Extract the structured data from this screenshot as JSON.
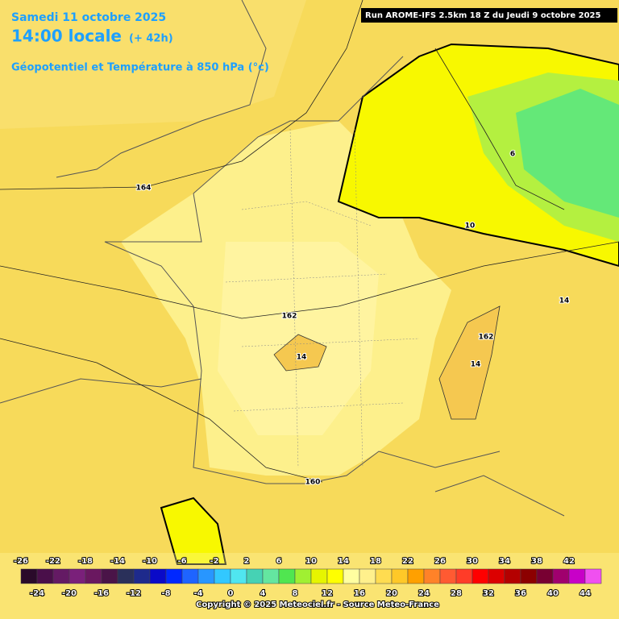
{
  "header": {
    "date": "Samedi 11 octobre 2025",
    "time": "14:00 locale",
    "lead": "(+ 42h)",
    "field": "Géopotentiel et Température à 850 hPa (°c)",
    "run": "Run AROME-IFS 2.5km 18 Z du Jeudi 9 octobre 2025"
  },
  "map_labels": [
    "164",
    "162",
    "160",
    "14",
    "14",
    "162",
    "14",
    "10",
    "6"
  ],
  "colorbar": [
    {
      "value": -26,
      "color": "#2a0a2a"
    },
    {
      "value": -24,
      "color": "#4a0f4a"
    },
    {
      "value": -22,
      "color": "#641a64"
    },
    {
      "value": -20,
      "color": "#7a207a"
    },
    {
      "value": -18,
      "color": "#6a1860"
    },
    {
      "value": -16,
      "color": "#4a1448"
    },
    {
      "value": -14,
      "color": "#2a305a"
    },
    {
      "value": -12,
      "color": "#1e2a8c"
    },
    {
      "value": -10,
      "color": "#0a0ac8"
    },
    {
      "value": -8,
      "color": "#0028ff"
    },
    {
      "value": -6,
      "color": "#1e64ff"
    },
    {
      "value": -4,
      "color": "#2896ff"
    },
    {
      "value": -2,
      "color": "#32c8ff"
    },
    {
      "value": 0,
      "color": "#50e6f0"
    },
    {
      "value": 2,
      "color": "#46d2b4"
    },
    {
      "value": 4,
      "color": "#64e6a0"
    },
    {
      "value": 6,
      "color": "#50e650"
    },
    {
      "value": 8,
      "color": "#a0f032"
    },
    {
      "value": 10,
      "color": "#e6f500"
    },
    {
      "value": 12,
      "color": "#ffff00"
    },
    {
      "value": 14,
      "color": "#ffffa0"
    },
    {
      "value": 16,
      "color": "#fff08c"
    },
    {
      "value": 18,
      "color": "#ffdc50"
    },
    {
      "value": 20,
      "color": "#ffc828"
    },
    {
      "value": 22,
      "color": "#ffa000"
    },
    {
      "value": 24,
      "color": "#ff8228"
    },
    {
      "value": 26,
      "color": "#ff5a32"
    },
    {
      "value": 28,
      "color": "#ff3c28"
    },
    {
      "value": 30,
      "color": "#ff0000"
    },
    {
      "value": 32,
      "color": "#dc0000"
    },
    {
      "value": 34,
      "color": "#b40000"
    },
    {
      "value": 36,
      "color": "#8c0000"
    },
    {
      "value": 38,
      "color": "#780032"
    },
    {
      "value": 40,
      "color": "#a0006e"
    },
    {
      "value": 42,
      "color": "#c800c8"
    },
    {
      "value": 44,
      "color": "#f050f0"
    }
  ],
  "footer": "Copyright © 2025 Meteociel.fr - Source Meteo-France"
}
